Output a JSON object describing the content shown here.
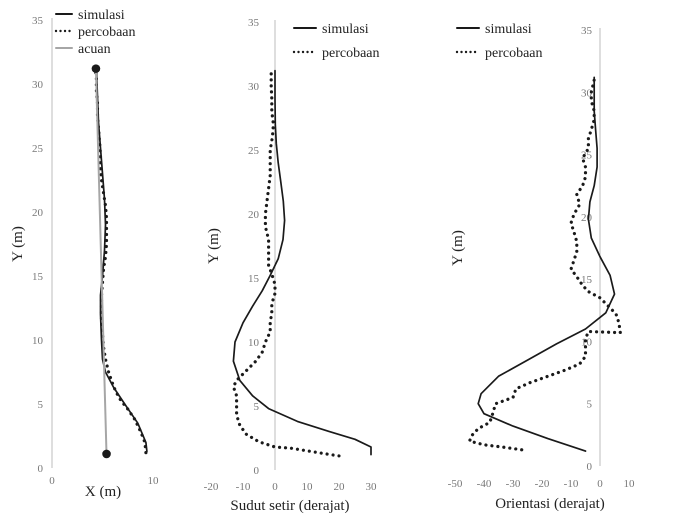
{
  "chart_data": [
    {
      "type": "scatter",
      "xlabel": "X (m)",
      "ylabel": "Y (m)",
      "xlim": [
        0,
        10
      ],
      "ylim": [
        0,
        35
      ],
      "xticks": [
        0,
        10
      ],
      "yticks": [
        0,
        5,
        10,
        15,
        20,
        25,
        30,
        35
      ],
      "legend": [
        "simulasi",
        "percobaan",
        "acuan"
      ],
      "series": [
        {
          "name": "simulasi",
          "style": "solid",
          "color": "#1a1a1a",
          "points": [
            [
              9.4,
              1.3
            ],
            [
              9.3,
              2
            ],
            [
              8.5,
              3.5
            ],
            [
              7.2,
              5
            ],
            [
              6.1,
              6.3
            ],
            [
              5.3,
              7.5
            ],
            [
              5,
              8.5
            ],
            [
              4.9,
              10
            ],
            [
              4.8,
              12
            ],
            [
              4.8,
              13.5
            ],
            [
              5,
              15
            ],
            [
              5.2,
              17
            ],
            [
              5.3,
              19
            ],
            [
              5.2,
              21
            ],
            [
              5,
              23
            ],
            [
              4.8,
              25
            ],
            [
              4.6,
              27
            ],
            [
              4.5,
              29
            ],
            [
              4.4,
              31.2
            ]
          ]
        },
        {
          "name": "percobaan",
          "style": "dotted",
          "color": "#1a1a1a",
          "points": [
            [
              9.3,
              1.2
            ],
            [
              9.2,
              2
            ],
            [
              8.8,
              2.8
            ],
            [
              8.2,
              3.8
            ],
            [
              7.5,
              4.6
            ],
            [
              6.8,
              5.3
            ],
            [
              6.3,
              6
            ],
            [
              5.9,
              6.8
            ],
            [
              5.6,
              7.5
            ],
            [
              5.3,
              8.5
            ],
            [
              5.1,
              9.5
            ],
            [
              5,
              10.5
            ],
            [
              4.9,
              11.5
            ],
            [
              4.9,
              12.5
            ],
            [
              4.9,
              13.5
            ],
            [
              5,
              14.5
            ],
            [
              5.1,
              15.5
            ],
            [
              5.3,
              16.5
            ],
            [
              5.4,
              17.5
            ],
            [
              5.4,
              18.5
            ],
            [
              5.4,
              19.5
            ],
            [
              5.3,
              20.5
            ],
            [
              5.1,
              21.5
            ],
            [
              4.9,
              22.5
            ],
            [
              4.8,
              23.5
            ],
            [
              4.8,
              24.5
            ],
            [
              4.7,
              25.5
            ],
            [
              4.6,
              26.5
            ],
            [
              4.5,
              27.5
            ],
            [
              4.5,
              28.5
            ],
            [
              4.4,
              29.5
            ],
            [
              4.4,
              30.5
            ],
            [
              4.3,
              31.2
            ]
          ]
        },
        {
          "name": "acuan",
          "style": "solid",
          "color": "#a6a6a6",
          "points": [
            [
              5.4,
              1.1
            ],
            [
              4.35,
              31.2
            ]
          ],
          "markers": [
            [
              5.4,
              1.1
            ],
            [
              4.35,
              31.2
            ]
          ]
        }
      ]
    },
    {
      "type": "line",
      "xlabel": "Sudut setir (derajat)",
      "ylabel": "Y (m)",
      "xlim": [
        -20,
        30
      ],
      "ylim": [
        0,
        35
      ],
      "xticks": [
        -20,
        -10,
        0,
        10,
        20,
        30
      ],
      "yticks": [
        0,
        5,
        10,
        15,
        20,
        25,
        30,
        35
      ],
      "legend": [
        "simulasi",
        "percobaan"
      ],
      "series": [
        {
          "name": "simulasi",
          "style": "solid",
          "color": "#1a1a1a",
          "points": [
            [
              30,
              1.2
            ],
            [
              30,
              1.8
            ],
            [
              25,
              2.4
            ],
            [
              17,
              3
            ],
            [
              7,
              3.8
            ],
            [
              -2,
              4.8
            ],
            [
              -7,
              5.8
            ],
            [
              -11,
              7
            ],
            [
              -13,
              8.5
            ],
            [
              -12.5,
              10
            ],
            [
              -10,
              11.5
            ],
            [
              -7,
              12.8
            ],
            [
              -4,
              14
            ],
            [
              -1.5,
              15.2
            ],
            [
              1,
              16.5
            ],
            [
              2.5,
              18
            ],
            [
              3,
              19.5
            ],
            [
              2.6,
              21
            ],
            [
              1.8,
              22.5
            ],
            [
              1,
              24
            ],
            [
              0.4,
              25.5
            ],
            [
              0.1,
              27
            ],
            [
              0,
              29
            ],
            [
              0,
              31.2
            ]
          ]
        },
        {
          "name": "percobaan",
          "style": "dotted",
          "color": "#1a1a1a",
          "points": [
            [
              20,
              1.1
            ],
            [
              15,
              1.3
            ],
            [
              10,
              1.5
            ],
            [
              5,
              1.7
            ],
            [
              0,
              1.8
            ],
            [
              -5,
              2.2
            ],
            [
              -9,
              2.8
            ],
            [
              -11,
              3.5
            ],
            [
              -12,
              4.3
            ],
            [
              -12,
              5
            ],
            [
              -12,
              5.8
            ],
            [
              -13,
              6.5
            ],
            [
              -12,
              7
            ],
            [
              -10,
              7.5
            ],
            [
              -8,
              8
            ],
            [
              -6,
              8.5
            ],
            [
              -4,
              9.2
            ],
            [
              -3,
              10
            ],
            [
              -1.5,
              10.8
            ],
            [
              -1.5,
              11.5
            ],
            [
              -1,
              12.3
            ],
            [
              -1,
              13
            ],
            [
              0,
              13.8
            ],
            [
              0,
              14.5
            ],
            [
              -1,
              15.3
            ],
            [
              -2,
              16
            ],
            [
              -2,
              17
            ],
            [
              -2,
              18
            ],
            [
              -3,
              19
            ],
            [
              -3,
              20
            ],
            [
              -2.5,
              21
            ],
            [
              -2,
              22
            ],
            [
              -1.5,
              23
            ],
            [
              -1.5,
              24
            ],
            [
              -1.5,
              25
            ],
            [
              -0.8,
              26
            ],
            [
              -0.5,
              27
            ],
            [
              -1,
              28
            ],
            [
              -1,
              29
            ],
            [
              -1.2,
              30
            ],
            [
              -1.2,
              31
            ]
          ]
        }
      ]
    },
    {
      "type": "line",
      "xlabel": "Orientasi (derajat)",
      "ylabel": "Y (m)",
      "xlim": [
        -50,
        10
      ],
      "ylim": [
        0,
        35
      ],
      "xticks": [
        -50,
        -40,
        -30,
        -20,
        -10,
        0,
        10
      ],
      "yticks": [
        0,
        5,
        10,
        15,
        20,
        25,
        30,
        35
      ],
      "legend": [
        "simulasi",
        "percobaan"
      ],
      "series": [
        {
          "name": "simulasi",
          "style": "solid",
          "color": "#1a1a1a",
          "points": [
            [
              -5,
              1.2
            ],
            [
              -18,
              2.2
            ],
            [
              -30,
              3.2
            ],
            [
              -40,
              4.2
            ],
            [
              -42,
              5
            ],
            [
              -41,
              5.8
            ],
            [
              -35,
              7.2
            ],
            [
              -25,
              8.5
            ],
            [
              -15,
              9.8
            ],
            [
              -5,
              11
            ],
            [
              2,
              12.3
            ],
            [
              5,
              13.8
            ],
            [
              3.5,
              15.3
            ],
            [
              0,
              16.8
            ],
            [
              -3,
              18.3
            ],
            [
              -4,
              19.8
            ],
            [
              -3.5,
              21.2
            ],
            [
              -2,
              22.5
            ],
            [
              -1,
              24
            ],
            [
              -1,
              25.5
            ],
            [
              -1.5,
              27
            ],
            [
              -2,
              28.5
            ],
            [
              -2,
              30
            ],
            [
              -2,
              31.2
            ]
          ]
        },
        {
          "name": "percobaan",
          "style": "dotted",
          "color": "#1a1a1a",
          "points": [
            [
              -27,
              1.3
            ],
            [
              -33,
              1.5
            ],
            [
              -40,
              1.7
            ],
            [
              -45,
              2
            ],
            [
              -44,
              2.5
            ],
            [
              -42,
              3
            ],
            [
              -38,
              3.5
            ],
            [
              -37,
              4.2
            ],
            [
              -36,
              5
            ],
            [
              -30,
              5.5
            ],
            [
              -29,
              6.2
            ],
            [
              -24,
              6.7
            ],
            [
              -18,
              7.2
            ],
            [
              -12,
              7.7
            ],
            [
              -7,
              8.2
            ],
            [
              -5,
              8.8
            ],
            [
              -5,
              9.5
            ],
            [
              -5,
              10.2
            ],
            [
              -4,
              10.8
            ],
            [
              7,
              10.7
            ],
            [
              6.5,
              11.5
            ],
            [
              5.5,
              12.2
            ],
            [
              3,
              12.8
            ],
            [
              0,
              13.5
            ],
            [
              -4,
              14
            ],
            [
              -6,
              14.5
            ],
            [
              -8,
              15.2
            ],
            [
              -10,
              15.8
            ],
            [
              -9,
              16.5
            ],
            [
              -8,
              17.2
            ],
            [
              -8,
              18
            ],
            [
              -9,
              18.8
            ],
            [
              -10,
              19.5
            ],
            [
              -9,
              20.2
            ],
            [
              -7,
              21
            ],
            [
              -8,
              21.8
            ],
            [
              -6,
              22.5
            ],
            [
              -5,
              23.2
            ],
            [
              -5,
              24
            ],
            [
              -6,
              24.7
            ],
            [
              -4,
              25.5
            ],
            [
              -4,
              26.3
            ],
            [
              -3,
              27
            ],
            [
              -2,
              27.8
            ],
            [
              -2,
              28.5
            ],
            [
              -3,
              29.3
            ],
            [
              -3,
              30
            ],
            [
              -2,
              31
            ]
          ]
        }
      ]
    }
  ]
}
